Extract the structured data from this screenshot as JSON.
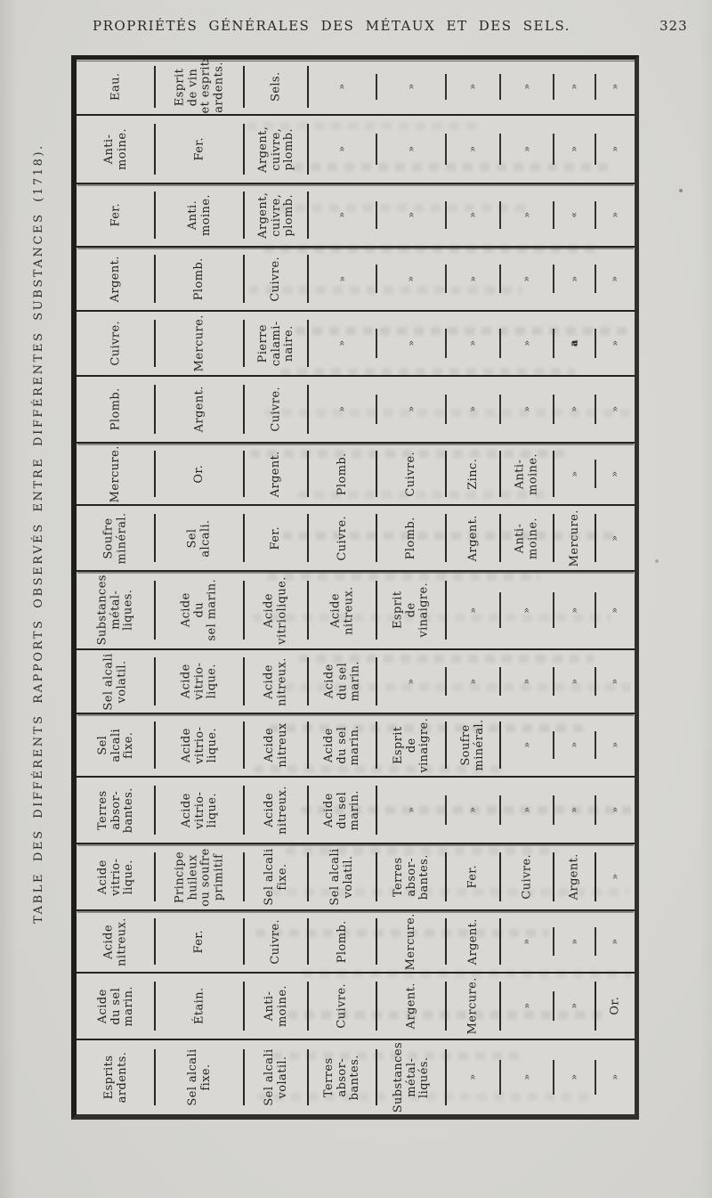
{
  "page": {
    "header_title": "PROPRIÉTÉS GÉNÉRALES DES MÉTAUX ET DES SELS.",
    "page_number": "323",
    "side_caption": "TABLE DES DIFFÉRENTS RAPPORTS OBSERVÉS ENTRE DIFFÉRENTES SUBSTANCES (1718)."
  },
  "table": {
    "description_visible": "Affinity table rotated 90°; each row lists a substance header followed by substances in order of affinity; » marks empty cells.",
    "rows": [
      {
        "cells": [
          "Eau.",
          "Esprit\nde vin\net esprits\nardents.",
          "Sels.",
          "»",
          "»",
          "»",
          "»",
          "»",
          "»"
        ]
      },
      {
        "cells": [
          "Anti-\nmoine.",
          "Fer.",
          "Argent,\ncuivre,\nplomb.",
          "»",
          "»",
          "»",
          "»",
          "»",
          "»"
        ]
      },
      {
        "cells": [
          "Fer.",
          "Anti.\nmoine.",
          "Argent,\ncuivre,\nplomb.",
          "»",
          "»",
          "»",
          "»",
          "«",
          "»"
        ]
      },
      {
        "cells": [
          "Argent.",
          "Plomb.",
          "Cuivre.",
          "»",
          "»",
          "»",
          "»",
          "»",
          "»"
        ]
      },
      {
        "cells": [
          "Cuivre.",
          "Mercure.",
          "Pierre\ncalami-\nnaire.",
          "»",
          "»",
          "»",
          "»",
          "a",
          "»"
        ]
      },
      {
        "cells": [
          "Plomb.",
          "Argent.",
          "Cuivre.",
          "»",
          "»",
          "»",
          "»",
          "»",
          "»"
        ]
      },
      {
        "cells": [
          "Mercure.",
          "Or.",
          "Argent.",
          "Plomb.",
          "Cuivre.",
          "Zinc.",
          "Anti-\nmoine.",
          "»",
          "»"
        ]
      },
      {
        "cells": [
          "Soufre\nminéral.",
          "Sel\nalcali.",
          "Fer.",
          "Cuivre.",
          "Plomb.",
          "Argent.",
          "Anti-\nmoine.",
          "Mercure.",
          "»"
        ]
      },
      {
        "cells": [
          "Substances\nmétal-\nliques.",
          "Acide\ndu\nsel marin.",
          "Acide\nvitriolique.",
          "Acide\nnitreux.",
          "Esprit\nde\nvinaigre.",
          "»",
          "»",
          "»",
          "»"
        ]
      },
      {
        "cells": [
          "Sel alcali\nvolatil.",
          "Acide\nvitrio-\nlique.",
          "Acide\nnitreux.",
          "Acide\ndu sel\nmarin.",
          "»",
          "»",
          "»",
          "»",
          "»"
        ]
      },
      {
        "cells": [
          "Sel\nalcali\nfixe.",
          "Acide\nvitrio-\nlique.",
          "Acide\nnitreux",
          "Acide\ndu sel\nmarin.",
          "Esprit\nde\nvinaigre.",
          "Soufre\nminéral.",
          "»",
          "»",
          "»"
        ]
      },
      {
        "cells": [
          "Terres\nabsor-\nbantes.",
          "Acide\nvitrio-\nlique.",
          "Acide\nnitreux.",
          "Acide\ndu sel\nmarin.",
          "»",
          "»",
          "»",
          "»",
          "»"
        ]
      },
      {
        "cells": [
          "Acide\nvitrio-\nlique.",
          "Principe\nhuileux\nou soufre\nprimitif",
          "Sel alcali\nfixe.",
          "Sel alcali\nvolatil.",
          "Terres\nabsor-\nbantes.",
          "Fer.",
          "Cuivre.",
          "Argent.",
          "»"
        ]
      },
      {
        "cells": [
          "Acide\nnitreux.",
          "Fer.",
          "Cuivre.",
          "Plomb.",
          "Mercure.",
          "Argent.",
          "»",
          "»",
          "»"
        ]
      },
      {
        "cells": [
          "Acide\ndu sel\nmarin.",
          "Étain.",
          "Anti-\nmoine.",
          "Cuivre.",
          "Argent.",
          "Mercure.",
          "»",
          "»",
          "Or."
        ]
      },
      {
        "cells": [
          "Esprits\nardents.",
          "Sel alcali\nfixe.",
          "Sel alcali\nvolatil.",
          "Terres\nabsor-\nbantes.",
          "Substances\nmétal-\nliqués.",
          "»",
          "»",
          "»",
          "»"
        ]
      }
    ]
  },
  "colors": {
    "paper": "#d8d7d2",
    "ink": "#26241f",
    "frame": "#201e1b",
    "bleed_through": "#7a7468"
  }
}
